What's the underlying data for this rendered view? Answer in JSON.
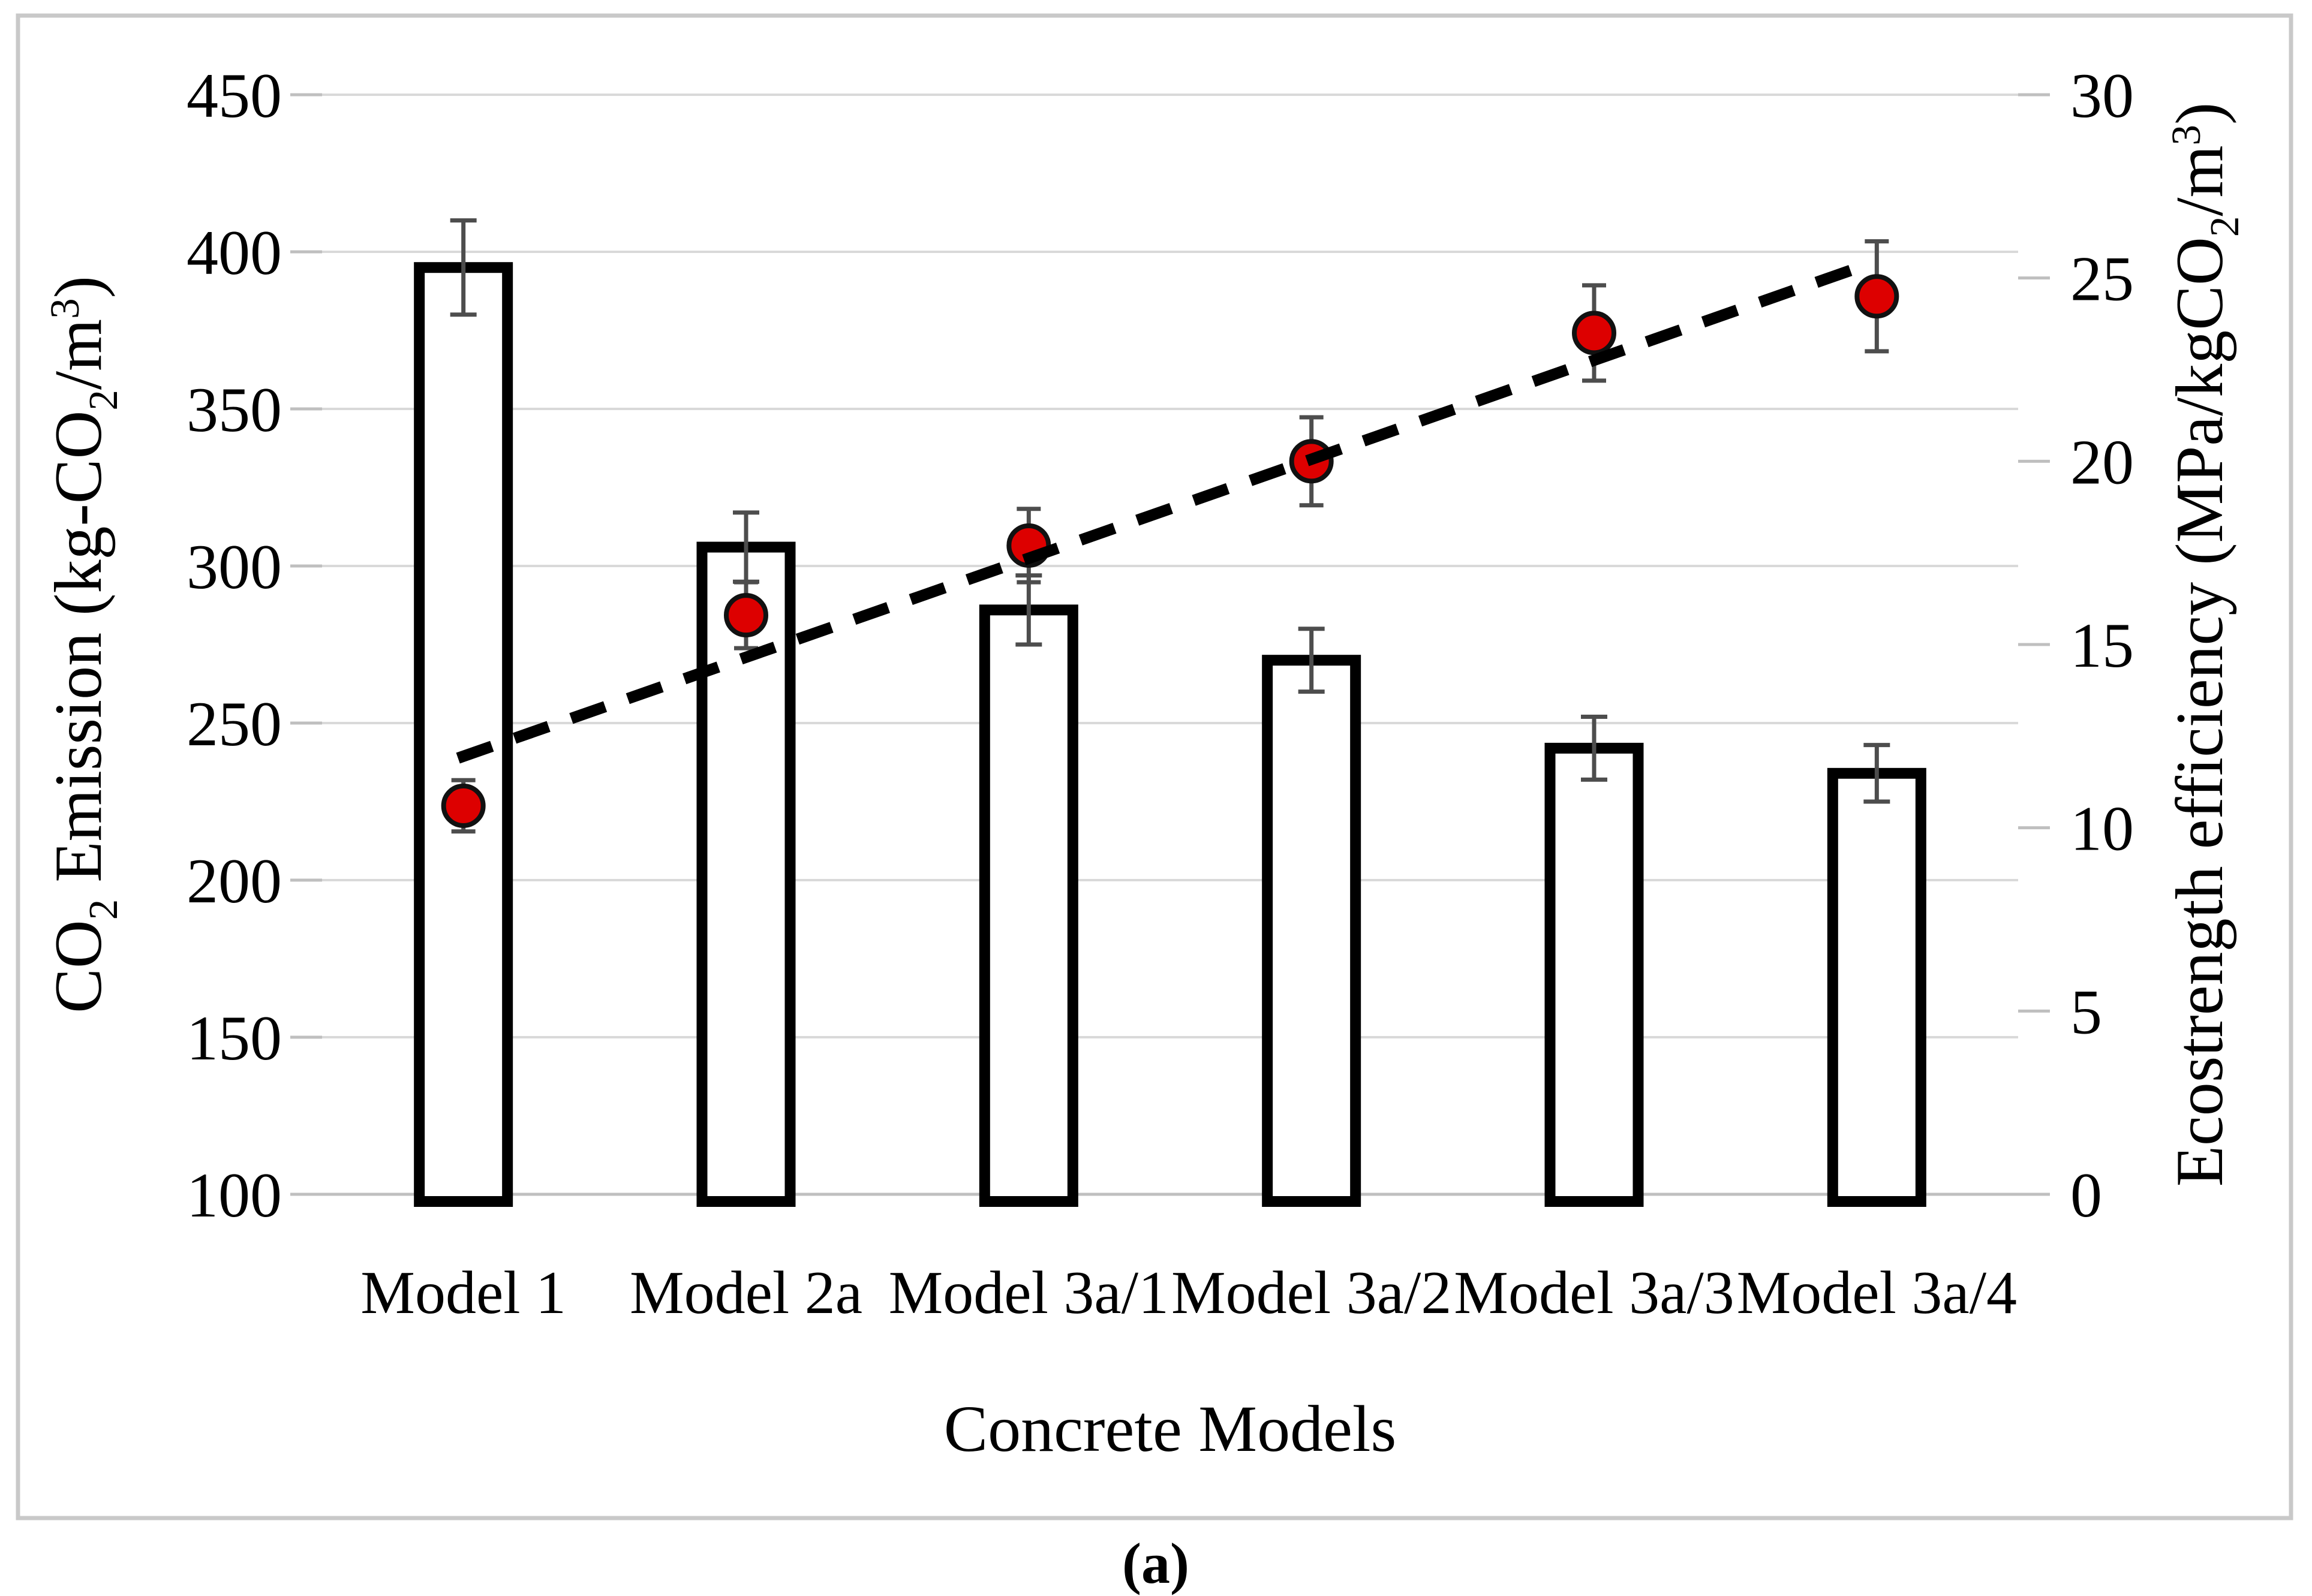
{
  "figure": {
    "caption": "(a)"
  },
  "colors": {
    "background": "#ffffff",
    "figure_border": "#c9c9c9",
    "gridline": "#d9d9d9",
    "axis_line": "#bfbfbf",
    "tick_mark": "#bfbfbf",
    "bar_fill": "#ffffff",
    "bar_stroke": "#000000",
    "error_bar": "#4d4d4d",
    "dot_fill": "#dd0000",
    "dot_stroke": "#111111",
    "trendline": "#000000",
    "text": "#000000"
  },
  "chart_data": {
    "type": "bar",
    "subtype": "dual-axis bar + scatter with dashed linear trendline",
    "categories": [
      "Model 1",
      "Model 2a",
      "Model 3a/1",
      "Model 3a/2",
      "Model 3a/3",
      "Model 3a/4"
    ],
    "series": [
      {
        "name": "CO2 Emission (bars, left axis)",
        "type": "bar",
        "axis": "left",
        "values": [
          395,
          306,
          286,
          270,
          242,
          234
        ],
        "errors": [
          15,
          11,
          11,
          10,
          10,
          9
        ]
      },
      {
        "name": "Ecostrength efficiency (red dots, right axis)",
        "type": "scatter",
        "axis": "right",
        "values": [
          10.6,
          15.8,
          17.7,
          20.0,
          23.5,
          24.5
        ],
        "errors": [
          0.7,
          0.9,
          1.0,
          1.2,
          1.3,
          1.5
        ]
      }
    ],
    "trendline": {
      "style": "dashed",
      "axis": "right",
      "start_slot": 0,
      "end_slot": 5,
      "start_value": 11.9,
      "end_value": 25.4
    },
    "left_axis": {
      "title": "CO₂ Emission (kg-CO₂/m³)",
      "title_segments": [
        {
          "t": "CO"
        },
        {
          "t": "2",
          "v": "sub"
        },
        {
          "t": " Emission (kg-CO"
        },
        {
          "t": "2",
          "v": "sub"
        },
        {
          "t": "/m"
        },
        {
          "t": "3",
          "v": "sup"
        },
        {
          "t": ")"
        }
      ],
      "min": 100,
      "max": 450,
      "step": 50,
      "tick_labels": [
        "450",
        "400",
        "350",
        "300",
        "250",
        "200",
        "150",
        "100"
      ]
    },
    "right_axis": {
      "title": "Ecostrength efficiency (MPa/kgCO₂/m³)",
      "title_segments": [
        {
          "t": "Ecostrength efficiency (MPa/kgCO"
        },
        {
          "t": "2",
          "v": "sub"
        },
        {
          "t": "/m"
        },
        {
          "t": "3",
          "v": "sup"
        },
        {
          "t": ")"
        }
      ],
      "min": 0,
      "max": 30,
      "step": 5,
      "tick_labels": [
        "30",
        "25",
        "20",
        "15",
        "10",
        "5",
        "0"
      ]
    },
    "xlabel": "Concrete Models",
    "grid": true,
    "legend": "none"
  }
}
